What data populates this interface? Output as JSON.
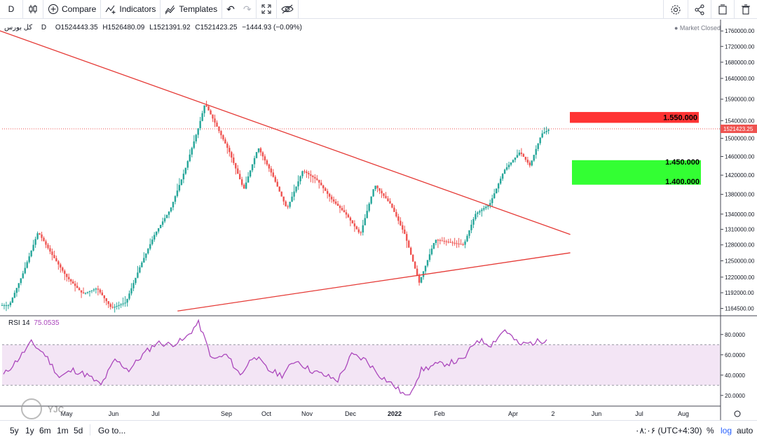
{
  "toolbar": {
    "interval": "D",
    "compare_label": "Compare",
    "indicators_label": "Indicators",
    "templates_label": "Templates",
    "icons": [
      "candles-icon",
      "plus-circle-icon",
      "indicators-icon",
      "templates-icon",
      "undo-icon",
      "redo-icon",
      "fullscreen-icon",
      "eye-off-icon",
      "settings-icon",
      "share-icon",
      "snapshot-icon",
      "trash-icon"
    ]
  },
  "legend": {
    "symbol": "کل بورس",
    "interval": "D",
    "open": "O1524443.35",
    "high": "H1526480.09",
    "low": "L1521391.92",
    "close": "C1521423.25",
    "change": "−1444.93 (−0.09%)"
  },
  "market_status": "● Market Closed",
  "rsi_legend": {
    "name": "RSI 14",
    "value": "75.0535"
  },
  "watermark": "YJC",
  "bottom": {
    "ranges": [
      "5y",
      "1y",
      "6m",
      "1m",
      "5d"
    ],
    "goto": "Go to...",
    "timezone": "۰۸:۰۶ (UTC+4:30)",
    "percent": "%",
    "log": "log",
    "auto": "auto"
  },
  "colors": {
    "up": "#26a69a",
    "down": "#ef5350",
    "trendline": "#e53935",
    "rsi": "#ab47bc",
    "rsi_band": "#f3e5f5",
    "red_box": "#ff3333",
    "green_box": "#33ff33"
  },
  "chart_data": {
    "type": "candlestick",
    "price_axis": {
      "ticks": [
        1760000,
        1720000,
        1680000,
        1640000,
        1590000,
        1540000,
        1500000,
        1460000,
        1420000,
        1380000,
        1340000,
        1310000,
        1280000,
        1250000,
        1220000,
        1192000,
        1164500
      ],
      "tick_labels": [
        "1760000.00",
        "1720000.00",
        "1680000.00",
        "1640000.00",
        "1590000.00",
        "1540000.00",
        "1500000.00",
        "1460000.00",
        "1420000.00",
        "1380000.00",
        "1340000.00",
        "1310000.00",
        "1280000.00",
        "1250000.00",
        "1220000.00",
        "1192000.00",
        "1164500.00"
      ],
      "scale": "log",
      "last_price_label": "1521423.25"
    },
    "time_axis": {
      "labels": [
        "May",
        "Jun",
        "Jul",
        "Sep",
        "Oct",
        "Nov",
        "Dec",
        "2022",
        "Feb",
        "Apr",
        "2",
        "Jun",
        "Jul",
        "Aug"
      ]
    },
    "price_series": [
      {
        "x": "2021-04-15",
        "close": 1170000
      },
      {
        "x": "2021-04-25",
        "close": 1230000
      },
      {
        "x": "2021-05-05",
        "close": 1305000
      },
      {
        "x": "2021-05-15",
        "close": 1260000
      },
      {
        "x": "2021-05-25",
        "close": 1220000
      },
      {
        "x": "2021-06-05",
        "close": 1190000
      },
      {
        "x": "2021-06-15",
        "close": 1200000
      },
      {
        "x": "2021-06-25",
        "close": 1165000
      },
      {
        "x": "2021-07-05",
        "close": 1175000
      },
      {
        "x": "2021-07-15",
        "close": 1240000
      },
      {
        "x": "2021-07-25",
        "close": 1300000
      },
      {
        "x": "2021-08-05",
        "close": 1350000
      },
      {
        "x": "2021-08-15",
        "close": 1430000
      },
      {
        "x": "2021-08-25",
        "close": 1530000
      },
      {
        "x": "2021-08-29",
        "close": 1580000
      },
      {
        "x": "2021-09-05",
        "close": 1535000
      },
      {
        "x": "2021-09-15",
        "close": 1470000
      },
      {
        "x": "2021-09-25",
        "close": 1390000
      },
      {
        "x": "2021-10-05",
        "close": 1480000
      },
      {
        "x": "2021-10-15",
        "close": 1420000
      },
      {
        "x": "2021-10-25",
        "close": 1350000
      },
      {
        "x": "2021-11-05",
        "close": 1430000
      },
      {
        "x": "2021-11-15",
        "close": 1410000
      },
      {
        "x": "2021-11-25",
        "close": 1370000
      },
      {
        "x": "2021-12-05",
        "close": 1340000
      },
      {
        "x": "2021-12-15",
        "close": 1300000
      },
      {
        "x": "2021-12-25",
        "close": 1400000
      },
      {
        "x": "2022-01-05",
        "close": 1360000
      },
      {
        "x": "2022-01-15",
        "close": 1300000
      },
      {
        "x": "2022-01-25",
        "close": 1210000
      },
      {
        "x": "2022-02-05",
        "close": 1290000
      },
      {
        "x": "2022-02-15",
        "close": 1285000
      },
      {
        "x": "2022-02-25",
        "close": 1280000
      },
      {
        "x": "2022-03-05",
        "close": 1340000
      },
      {
        "x": "2022-03-15",
        "close": 1360000
      },
      {
        "x": "2022-03-25",
        "close": 1430000
      },
      {
        "x": "2022-04-05",
        "close": 1470000
      },
      {
        "x": "2022-04-12",
        "close": 1440000
      },
      {
        "x": "2022-04-20",
        "close": 1510000
      },
      {
        "x": "2022-04-26",
        "close": 1521423
      }
    ],
    "trendlines": [
      {
        "name": "descending",
        "from": {
          "x": "2021-03-25",
          "price": 1780000
        },
        "to": {
          "x": "2022-05-10",
          "price": 1300000
        }
      },
      {
        "name": "ascending",
        "from": {
          "x": "2021-08-10",
          "price": 1160000
        },
        "to": {
          "x": "2022-05-10",
          "price": 1265000
        }
      }
    ],
    "annotations": [
      {
        "text": "1.550.000",
        "type": "box",
        "price_top": 1560000,
        "price_bottom": 1535000
      },
      {
        "text": "1.450.000",
        "type": "box"
      },
      {
        "text": "1.400.000",
        "type": "box",
        "price_top": 1452000,
        "price_bottom": 1400000
      }
    ],
    "rsi": {
      "period": 14,
      "last": 75.0535,
      "ticks": [
        80,
        60,
        40,
        20
      ],
      "tick_labels": [
        "80.0000",
        "60.0000",
        "40.0000",
        "20.0000"
      ],
      "bands": [
        30,
        70
      ],
      "values": [
        40,
        55,
        72,
        60,
        38,
        45,
        40,
        30,
        55,
        45,
        60,
        72,
        70,
        75,
        92,
        55,
        60,
        40,
        60,
        45,
        40,
        55,
        45,
        40,
        35,
        60,
        55,
        40,
        30,
        18,
        45,
        50,
        52,
        55,
        75,
        70,
        85,
        70,
        72,
        75
      ]
    }
  }
}
